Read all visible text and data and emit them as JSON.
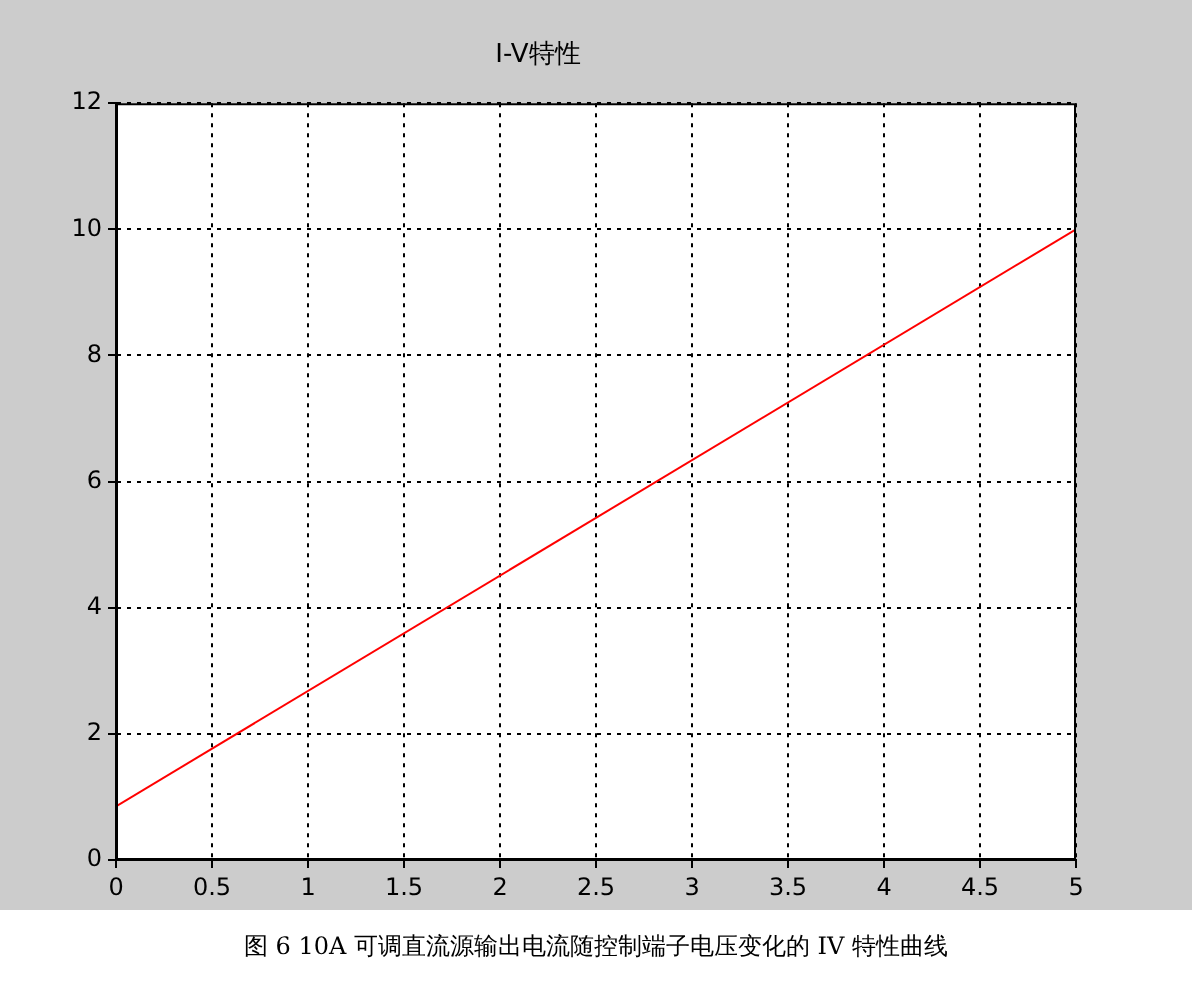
{
  "chart_data": {
    "type": "line",
    "title": "I-V特性",
    "x": [
      0,
      5
    ],
    "series": [
      {
        "color": "#ff0000",
        "values": [
          0.85,
          10
        ]
      }
    ],
    "xlim": [
      0,
      5
    ],
    "xticks": [
      0,
      0.5,
      1,
      1.5,
      2,
      2.5,
      3,
      3.5,
      4,
      4.5,
      5
    ],
    "ylim": [
      0,
      12
    ],
    "yticks": [
      0,
      2,
      4,
      6,
      8,
      10,
      12
    ],
    "grid": true,
    "legend": false,
    "marker": "none",
    "line_style": "solid",
    "annotations": [
      "图 6 10A 可调直流源输出电流随控制端子电压变化的 IV 特性曲线"
    ]
  }
}
